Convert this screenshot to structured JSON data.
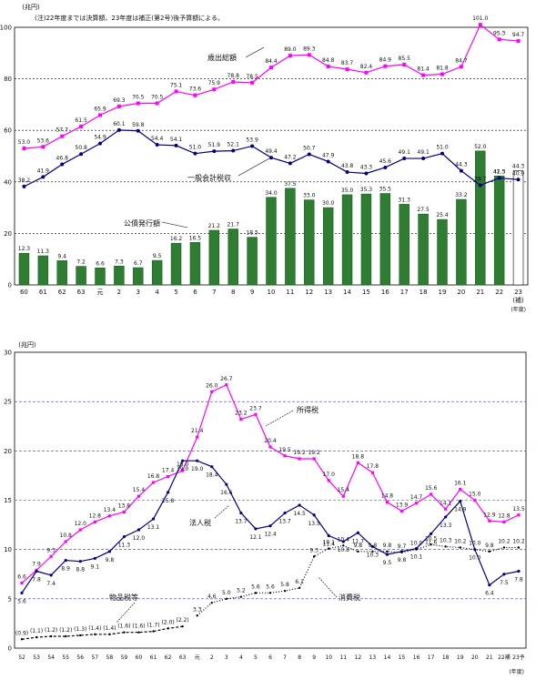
{
  "chart_data": [
    {
      "type": "bar",
      "title": "",
      "note": "(注)22年度までは決算額、23年度は補正(第2号)後予算額による。",
      "unit": "(兆円)",
      "x_suffix": "(年度)",
      "categories": [
        "60",
        "61",
        "62",
        "63",
        "元",
        "2",
        "3",
        "4",
        "5",
        "6",
        "7",
        "8",
        "9",
        "10",
        "11",
        "12",
        "13",
        "14",
        "15",
        "16",
        "17",
        "18",
        "19",
        "20",
        "21",
        "22",
        "23\n(補)"
      ],
      "ylim": [
        0,
        100
      ],
      "yticks": [
        0,
        20,
        40,
        60,
        80,
        100
      ],
      "grid": true,
      "series": [
        {
          "name": "歳出総額",
          "kind": "line",
          "color": "#ff00ff",
          "values": [
            53.0,
            53.6,
            57.7,
            61.5,
            65.9,
            69.3,
            70.5,
            70.5,
            75.1,
            73.6,
            75.9,
            78.8,
            78.5,
            84.4,
            89.0,
            89.3,
            84.8,
            83.7,
            82.4,
            84.9,
            85.5,
            81.4,
            81.8,
            84.7,
            101.0,
            95.3,
            94.7
          ]
        },
        {
          "name": "一般会計税収",
          "kind": "line",
          "color": "#000080",
          "values": [
            38.2,
            41.9,
            46.8,
            50.8,
            54.9,
            60.1,
            59.8,
            54.4,
            54.1,
            51.0,
            51.9,
            52.1,
            53.9,
            49.4,
            47.2,
            50.7,
            47.9,
            43.8,
            43.3,
            45.6,
            49.1,
            49.1,
            51.0,
            44.3,
            38.7,
            41.5,
            40.9
          ]
        },
        {
          "name": "公債発行額",
          "kind": "bar",
          "color": "#2e7d32",
          "values": [
            12.3,
            11.3,
            9.4,
            7.2,
            6.6,
            7.3,
            6.7,
            9.5,
            16.2,
            16.5,
            21.2,
            21.7,
            18.5,
            34.0,
            37.5,
            33.0,
            30.0,
            35.0,
            35.3,
            35.5,
            31.3,
            27.5,
            25.4,
            33.2,
            52.0,
            42.3,
            44.3
          ]
        }
      ],
      "labels": {
        "歳出総額": "歳出総額",
        "一般会計税収": "一般会計税収",
        "公債発行額": "公債発行額"
      }
    },
    {
      "type": "line",
      "title": "",
      "unit": "(兆円)",
      "x_suffix": "(年度)",
      "categories": [
        "52",
        "53",
        "54",
        "55",
        "56",
        "57",
        "58",
        "59",
        "60",
        "61",
        "62",
        "63",
        "元",
        "2",
        "3",
        "4",
        "5",
        "6",
        "7",
        "8",
        "9",
        "10",
        "11",
        "12",
        "13",
        "14",
        "15",
        "16",
        "17",
        "18",
        "19",
        "20",
        "21",
        "22補",
        "23予"
      ],
      "ylim": [
        0,
        30
      ],
      "yticks": [
        0,
        5,
        10,
        15,
        20,
        25,
        30
      ],
      "grid": true,
      "series": [
        {
          "name": "所得税",
          "color": "#ff00ff",
          "values": [
            6.6,
            7.9,
            9.3,
            10.8,
            12.0,
            12.8,
            13.4,
            13.8,
            15.4,
            16.8,
            17.4,
            18.0,
            21.4,
            26.0,
            26.7,
            23.2,
            23.7,
            20.4,
            19.5,
            19.2,
            19.2,
            17.0,
            15.4,
            18.8,
            17.8,
            14.8,
            13.9,
            14.7,
            15.6,
            14.1,
            16.1,
            15.0,
            12.9,
            12.8,
            13.5
          ]
        },
        {
          "name": "法人税",
          "color": "#000080",
          "values": [
            5.6,
            7.8,
            7.4,
            8.9,
            8.8,
            9.1,
            9.8,
            11.3,
            12.0,
            13.1,
            15.8,
            19.0,
            19.0,
            18.4,
            16.6,
            13.7,
            12.1,
            12.4,
            13.7,
            14.5,
            13.5,
            11.4,
            10.8,
            11.7,
            10.3,
            9.5,
            9.8,
            10.1,
            11.6,
            13.3,
            14.9,
            10.0,
            6.4,
            7.5,
            7.8
          ]
        },
        {
          "name": "消費税",
          "color": "#000000",
          "dash": "1 2",
          "values": [
            null,
            null,
            null,
            null,
            null,
            null,
            null,
            null,
            null,
            null,
            null,
            null,
            3.3,
            4.6,
            5.0,
            5.2,
            5.6,
            5.6,
            5.8,
            6.1,
            9.3,
            10.1,
            10.4,
            9.8,
            9.8,
            9.8,
            9.7,
            10.0,
            10.5,
            10.3,
            10.2,
            10.0,
            9.8,
            10.2,
            10.2
          ]
        },
        {
          "name": "物品税等",
          "color": "#000000",
          "dash": "3 2",
          "values": [
            0.9,
            1.1,
            1.2,
            1.2,
            1.3,
            1.4,
            1.4,
            1.6,
            1.6,
            1.7,
            2.0,
            2.2,
            null,
            null,
            null,
            null,
            null,
            null,
            null,
            null,
            null,
            null,
            null,
            null,
            null,
            null,
            null,
            null,
            null,
            null,
            null,
            null,
            null,
            null,
            null
          ]
        }
      ],
      "value_labels": {
        "所得税": [
          "6.6",
          "7.9",
          "9.3",
          "10.8",
          "12.0",
          "12.8",
          "13.4",
          "13.8",
          "15.4",
          "16.8",
          "17.4",
          "18.0",
          "21.4",
          "26.0",
          "26.7",
          "23.2",
          "23.7",
          "20.4",
          "19.5",
          "19.2",
          "19.2",
          "17.0",
          "15.4",
          "18.8",
          "17.8",
          "14.8",
          "13.9",
          "14.7",
          "15.6",
          "14.1",
          "16.1",
          "15.0",
          "12.9",
          "12.8",
          "13.5"
        ],
        "法人税": [
          "5.6",
          "7.8",
          "7.4",
          "8.9",
          "8.8",
          "9.1",
          "9.8",
          "11.3",
          "12.0",
          "13.1",
          "15.8",
          "19.0",
          "19.0",
          "18.4",
          "16.6",
          "13.7",
          "12.1",
          "12.4",
          "13.7",
          "14.5",
          "13.5",
          "11.4",
          "10.8",
          "11.7",
          "10.3",
          "9.5",
          "9.8",
          "10.1",
          "11.6",
          "13.3",
          "14.9",
          "10.0",
          "6.4",
          "7.5",
          "7.8"
        ],
        "消費税": [
          "",
          "",
          "",
          "",
          "",
          "",
          "",
          "",
          "",
          "",
          "",
          "",
          "3.3",
          "4.6",
          "5.0",
          "5.2",
          "5.6",
          "5.6",
          "5.8",
          "6.1",
          "9.3",
          "10.1",
          "10.4",
          "9.8",
          "9.8",
          "9.8",
          "9.7",
          "10.0",
          "10.5",
          "10.3",
          "10.2",
          "10.0",
          "9.8",
          "10.2",
          "10.2"
        ],
        "物品税等": [
          "(0.9)",
          "(1.1)",
          "(1.2)",
          "(1.2)",
          "(1.3)",
          "(1.4)",
          "(1.4)",
          "(1.6)",
          "(1.6)",
          "(1.7)",
          "(2.0)",
          "(2.2)",
          "",
          "",
          "",
          "",
          "",
          "",
          "",
          "",
          "",
          "",
          "",
          "",
          "",
          "",
          "",
          "",
          "",
          "",
          "",
          "",
          "",
          "",
          ""
        ]
      },
      "labels": {
        "所得税": "所得税",
        "法人税": "法人税",
        "消費税": "消費税",
        "物品税等": "物品税等"
      }
    }
  ]
}
